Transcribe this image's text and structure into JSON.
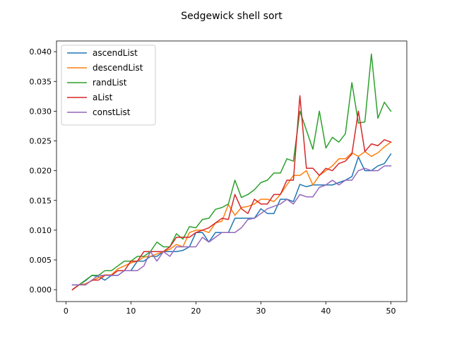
{
  "chart_data": {
    "type": "line",
    "title": "Sedgewick shell sort",
    "xlabel": "",
    "ylabel": "",
    "xlim": [
      -1.45,
      52.45
    ],
    "ylim": [
      -0.002,
      0.0418
    ],
    "x_ticks": [
      0,
      10,
      20,
      30,
      40,
      50
    ],
    "x_tick_labels": [
      "0",
      "10",
      "20",
      "30",
      "40",
      "50"
    ],
    "y_ticks": [
      0.0,
      0.005,
      0.01,
      0.015,
      0.02,
      0.025,
      0.03,
      0.035,
      0.04
    ],
    "y_tick_labels": [
      "0.000",
      "0.005",
      "0.010",
      "0.015",
      "0.020",
      "0.025",
      "0.030",
      "0.035",
      "0.040"
    ],
    "grid": false,
    "legend_position": "top-left",
    "x": [
      1,
      2,
      3,
      4,
      5,
      6,
      7,
      8,
      9,
      10,
      11,
      12,
      13,
      14,
      15,
      16,
      17,
      18,
      19,
      20,
      21,
      22,
      23,
      24,
      25,
      26,
      27,
      28,
      29,
      30,
      31,
      32,
      33,
      34,
      35,
      36,
      37,
      38,
      39,
      40,
      41,
      42,
      43,
      44,
      45,
      46,
      47,
      48,
      49,
      50
    ],
    "series": [
      {
        "name": "ascendList",
        "color": "#1f77b4",
        "values": [
          0.0008,
          0.0008,
          0.0015,
          0.0024,
          0.0022,
          0.0016,
          0.0024,
          0.0024,
          0.0032,
          0.0032,
          0.0048,
          0.0048,
          0.0056,
          0.0056,
          0.0064,
          0.0064,
          0.0064,
          0.0066,
          0.0072,
          0.0096,
          0.0096,
          0.008,
          0.0096,
          0.0096,
          0.0096,
          0.012,
          0.012,
          0.012,
          0.012,
          0.0136,
          0.0128,
          0.0128,
          0.0152,
          0.0152,
          0.0148,
          0.0177,
          0.0173,
          0.0176,
          0.0176,
          0.0176,
          0.0176,
          0.018,
          0.0184,
          0.019,
          0.0223,
          0.02,
          0.02,
          0.0208,
          0.0212,
          0.0228
        ]
      },
      {
        "name": "descendList",
        "color": "#ff7f0e",
        "values": [
          0.0,
          0.0008,
          0.001,
          0.0015,
          0.002,
          0.0025,
          0.0025,
          0.0035,
          0.004,
          0.0045,
          0.0048,
          0.0055,
          0.0056,
          0.006,
          0.0064,
          0.0068,
          0.0076,
          0.0072,
          0.0096,
          0.01,
          0.01,
          0.0096,
          0.0112,
          0.0115,
          0.0143,
          0.0125,
          0.0138,
          0.014,
          0.0144,
          0.0152,
          0.0152,
          0.0148,
          0.016,
          0.0176,
          0.0192,
          0.0192,
          0.02,
          0.0176,
          0.0192,
          0.02,
          0.0208,
          0.022,
          0.022,
          0.023,
          0.0224,
          0.0232,
          0.0224,
          0.023,
          0.024,
          0.0248
        ]
      },
      {
        "name": "randList",
        "color": "#2ca02c",
        "values": [
          0.0,
          0.0008,
          0.0016,
          0.0024,
          0.0024,
          0.0032,
          0.0032,
          0.004,
          0.0048,
          0.0048,
          0.0056,
          0.0056,
          0.0064,
          0.008,
          0.0072,
          0.0072,
          0.0094,
          0.0085,
          0.0106,
          0.0104,
          0.0118,
          0.012,
          0.0135,
          0.0138,
          0.0144,
          0.0184,
          0.0155,
          0.016,
          0.0168,
          0.018,
          0.0184,
          0.0196,
          0.0196,
          0.022,
          0.0216,
          0.03,
          0.0268,
          0.0236,
          0.03,
          0.0238,
          0.0256,
          0.0248,
          0.0262,
          0.0348,
          0.028,
          0.0282,
          0.0396,
          0.0288,
          0.0315,
          0.03
        ]
      },
      {
        "name": "aList",
        "color": "#d62728",
        "values": [
          0.0,
          0.0008,
          0.0008,
          0.0016,
          0.0016,
          0.0024,
          0.0024,
          0.0032,
          0.0032,
          0.0048,
          0.0048,
          0.0064,
          0.0064,
          0.0064,
          0.0064,
          0.0072,
          0.0088,
          0.0088,
          0.0088,
          0.0096,
          0.01,
          0.0104,
          0.0112,
          0.012,
          0.0118,
          0.016,
          0.0136,
          0.0128,
          0.0152,
          0.0144,
          0.0144,
          0.016,
          0.016,
          0.0184,
          0.0184,
          0.0326,
          0.0204,
          0.0204,
          0.0192,
          0.0204,
          0.02,
          0.0212,
          0.0216,
          0.0228,
          0.03,
          0.0232,
          0.0245,
          0.0242,
          0.0252,
          0.0248
        ]
      },
      {
        "name": "constList",
        "color": "#9467bd",
        "values": [
          0.0008,
          0.0008,
          0.0008,
          0.0016,
          0.0024,
          0.0024,
          0.0024,
          0.0024,
          0.0032,
          0.0032,
          0.0032,
          0.004,
          0.0064,
          0.0048,
          0.0064,
          0.0056,
          0.0072,
          0.0072,
          0.0072,
          0.0072,
          0.0088,
          0.008,
          0.0088,
          0.0096,
          0.0096,
          0.0096,
          0.0104,
          0.0118,
          0.012,
          0.0128,
          0.0136,
          0.014,
          0.0144,
          0.0152,
          0.0144,
          0.016,
          0.0156,
          0.0156,
          0.0172,
          0.0176,
          0.0184,
          0.0176,
          0.0184,
          0.0184,
          0.02,
          0.0204,
          0.02,
          0.02,
          0.0208,
          0.0208
        ]
      }
    ]
  }
}
